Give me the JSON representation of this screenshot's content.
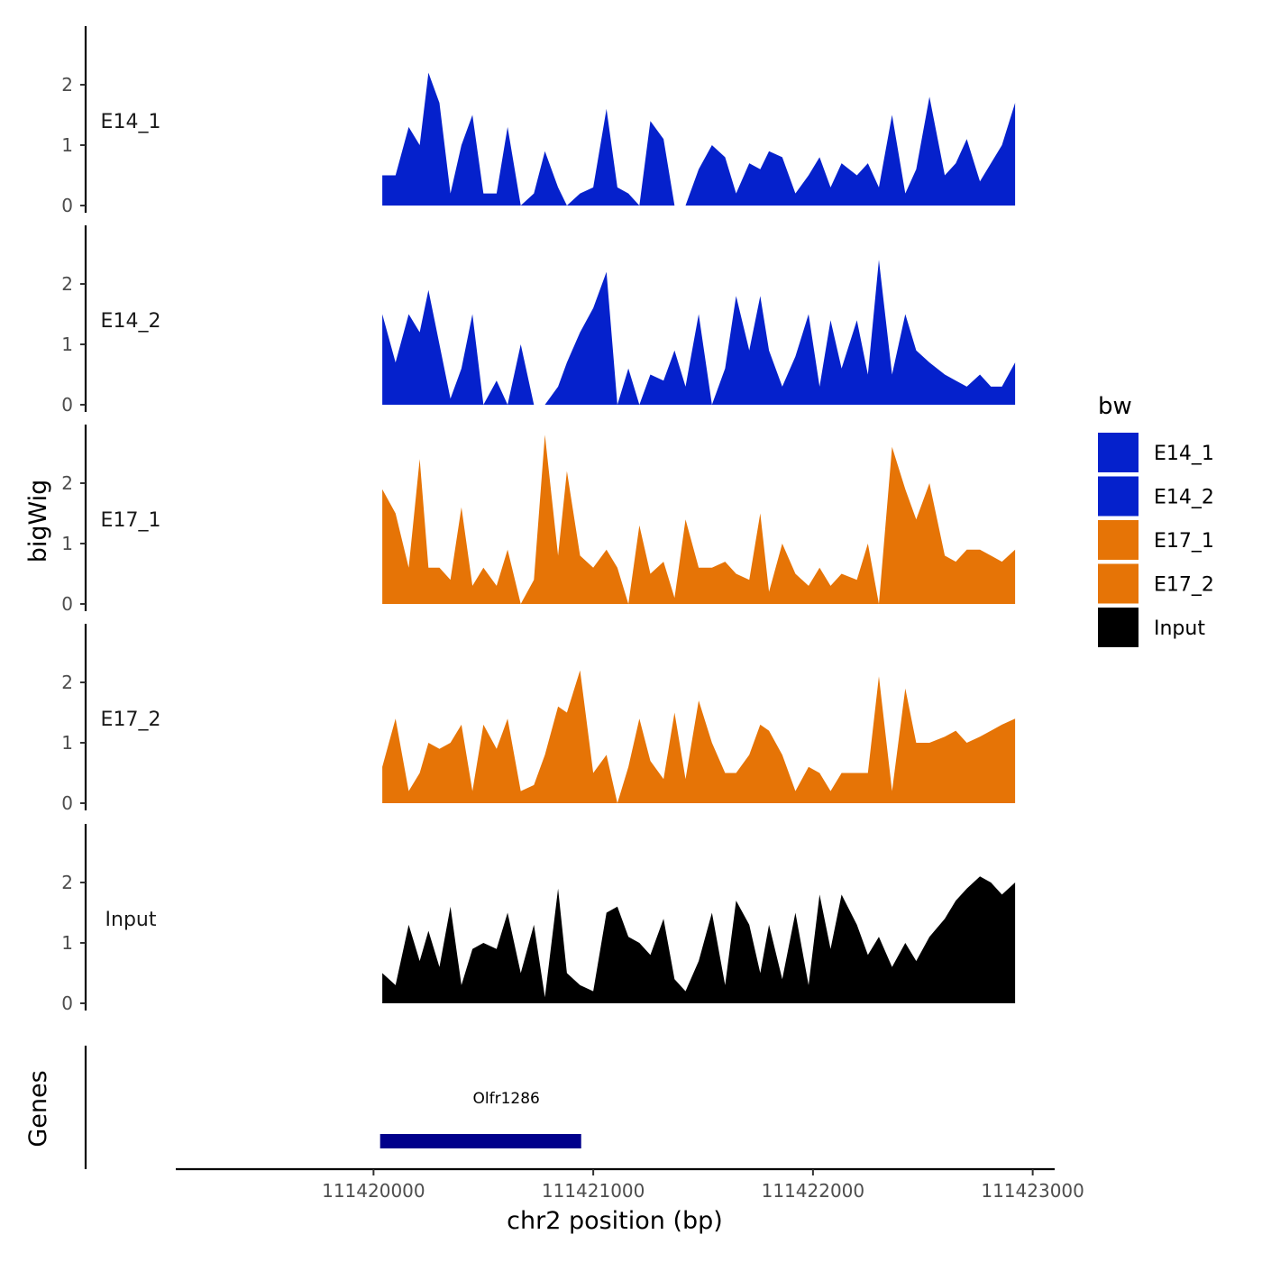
{
  "chart_data": {
    "type": "area",
    "xlabel": "chr2 position (bp)",
    "ylabel": "bigWig",
    "genes_label": "Genes",
    "xlim": [
      111419100,
      111423100
    ],
    "xticks": [
      "111420000",
      "111421000",
      "111422000",
      "111423000"
    ],
    "ylim": [
      0,
      2.9
    ],
    "yticks": [
      "0",
      "1",
      "2"
    ],
    "legend": {
      "title": "bw",
      "position": "right",
      "entries": [
        {
          "name": "E14_1",
          "color": "#0521cc"
        },
        {
          "name": "E14_2",
          "color": "#0521cc"
        },
        {
          "name": "E17_1",
          "color": "#e67406"
        },
        {
          "name": "E17_2",
          "color": "#e67406"
        },
        {
          "name": "Input",
          "color": "#000000"
        }
      ]
    },
    "x": [
      111420040,
      111420100,
      111420160,
      111420210,
      111420250,
      111420300,
      111420350,
      111420400,
      111420450,
      111420500,
      111420560,
      111420610,
      111420670,
      111420730,
      111420780,
      111420840,
      111420880,
      111420940,
      111421000,
      111421060,
      111421110,
      111421160,
      111421210,
      111421260,
      111421320,
      111421370,
      111421420,
      111421480,
      111421540,
      111421600,
      111421650,
      111421710,
      111421760,
      111421800,
      111421860,
      111421920,
      111421980,
      111422030,
      111422080,
      111422130,
      111422200,
      111422250,
      111422300,
      111422360,
      111422420,
      111422470,
      111422530,
      111422600,
      111422650,
      111422700,
      111422760,
      111422810,
      111422860,
      111422920
    ],
    "series": [
      {
        "name": "E14_1",
        "color": "#0521cc",
        "values": [
          0.5,
          0.5,
          1.3,
          1.0,
          2.2,
          1.7,
          0.2,
          1.0,
          1.5,
          0.2,
          0.2,
          1.3,
          0.0,
          0.2,
          0.9,
          0.3,
          0.0,
          0.2,
          0.3,
          1.6,
          0.3,
          0.2,
          0.0,
          1.4,
          1.1,
          0.0,
          0.0,
          0.6,
          1.0,
          0.8,
          0.2,
          0.7,
          0.6,
          0.9,
          0.8,
          0.2,
          0.5,
          0.8,
          0.3,
          0.7,
          0.5,
          0.7,
          0.3,
          1.5,
          0.2,
          0.6,
          1.8,
          0.5,
          0.7,
          1.1,
          0.4,
          0.7,
          1.0,
          1.7
        ]
      },
      {
        "name": "E14_2",
        "color": "#0521cc",
        "values": [
          1.5,
          0.7,
          1.5,
          1.2,
          1.9,
          1.0,
          0.1,
          0.6,
          1.5,
          0.0,
          0.4,
          0.0,
          1.0,
          0.0,
          0.0,
          0.3,
          0.7,
          1.2,
          1.6,
          2.2,
          0.0,
          0.6,
          0.0,
          0.5,
          0.4,
          0.9,
          0.3,
          1.5,
          0.0,
          0.6,
          1.8,
          0.9,
          1.8,
          0.9,
          0.3,
          0.8,
          1.5,
          0.3,
          1.4,
          0.6,
          1.4,
          0.5,
          2.4,
          0.5,
          1.5,
          0.9,
          0.7,
          0.5,
          0.4,
          0.3,
          0.5,
          0.3,
          0.3,
          0.7
        ]
      },
      {
        "name": "E17_1",
        "color": "#e67406",
        "values": [
          1.9,
          1.5,
          0.6,
          2.4,
          0.6,
          0.6,
          0.4,
          1.6,
          0.3,
          0.6,
          0.3,
          0.9,
          0.0,
          0.4,
          2.8,
          0.8,
          2.2,
          0.8,
          0.6,
          0.9,
          0.6,
          0.0,
          1.3,
          0.5,
          0.7,
          0.1,
          1.4,
          0.6,
          0.6,
          0.7,
          0.5,
          0.4,
          1.5,
          0.2,
          1.0,
          0.5,
          0.3,
          0.6,
          0.3,
          0.5,
          0.4,
          1.0,
          0.0,
          2.6,
          1.9,
          1.4,
          2.0,
          0.8,
          0.7,
          0.9,
          0.9,
          0.8,
          0.7,
          0.9
        ]
      },
      {
        "name": "E17_2",
        "color": "#e67406",
        "values": [
          0.6,
          1.4,
          0.2,
          0.5,
          1.0,
          0.9,
          1.0,
          1.3,
          0.2,
          1.3,
          0.9,
          1.4,
          0.2,
          0.3,
          0.8,
          1.6,
          1.5,
          2.2,
          0.5,
          0.8,
          0.0,
          0.6,
          1.4,
          0.7,
          0.4,
          1.5,
          0.4,
          1.7,
          1.0,
          0.5,
          0.5,
          0.8,
          1.3,
          1.2,
          0.8,
          0.2,
          0.6,
          0.5,
          0.2,
          0.5,
          0.5,
          0.5,
          2.1,
          0.2,
          1.9,
          1.0,
          1.0,
          1.1,
          1.2,
          1.0,
          1.1,
          1.2,
          1.3,
          1.4
        ]
      },
      {
        "name": "Input",
        "color": "#000000",
        "values": [
          0.5,
          0.3,
          1.3,
          0.7,
          1.2,
          0.6,
          1.6,
          0.3,
          0.9,
          1.0,
          0.9,
          1.5,
          0.5,
          1.3,
          0.1,
          1.9,
          0.5,
          0.3,
          0.2,
          1.5,
          1.6,
          1.1,
          1.0,
          0.8,
          1.4,
          0.4,
          0.2,
          0.7,
          1.5,
          0.3,
          1.7,
          1.3,
          0.5,
          1.3,
          0.4,
          1.5,
          0.3,
          1.8,
          0.9,
          1.8,
          1.3,
          0.8,
          1.1,
          0.6,
          1.0,
          0.7,
          1.1,
          1.4,
          1.7,
          1.9,
          2.1,
          2.0,
          1.8,
          2.0
        ]
      }
    ],
    "genes": [
      {
        "name": "Olfr1286",
        "start": 111420030,
        "end": 111420945,
        "color": "#00008b"
      }
    ]
  }
}
